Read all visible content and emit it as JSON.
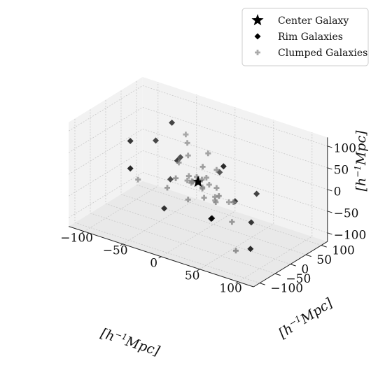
{
  "chart_data": {
    "type": "scatter",
    "projection": "3d",
    "title": "",
    "xlabel": "[h^{-1}Mpc]",
    "ylabel": "[h^{-1}Mpc]",
    "zlabel": "[h^{-1}Mpc]",
    "axis_label_parts": {
      "open": "[",
      "h": "h",
      "exp": "−1",
      "unit": "Mpc]"
    },
    "xlim": [
      -120,
      120
    ],
    "ylim": [
      -120,
      120
    ],
    "zlim": [
      -120,
      120
    ],
    "xticks": [
      -100,
      -50,
      0,
      50,
      100
    ],
    "yticks": [
      -100,
      -50,
      0,
      50,
      100
    ],
    "zticks": [
      -100,
      -50,
      0,
      50,
      100
    ],
    "x_tick_labels": [
      "−100",
      "−50",
      "0",
      "50",
      "100"
    ],
    "y_tick_labels": [
      "−100",
      "−50",
      "0",
      "50",
      "100"
    ],
    "z_tick_labels": [
      "−100",
      "−50",
      "0",
      "50",
      "100"
    ],
    "grid": true,
    "legend_position": "top-right",
    "series": [
      {
        "name": "Center Galaxy",
        "marker": "star",
        "color": "#000000",
        "points": [
          [
            0,
            0,
            0
          ]
        ]
      },
      {
        "name": "Rim Galaxies",
        "marker": "diamond",
        "color": "#000000",
        "points": [
          [
            -50,
            40,
            90
          ],
          [
            45,
            -30,
            75
          ],
          [
            -70,
            -45,
            10
          ],
          [
            -90,
            5,
            40
          ],
          [
            -35,
            20,
            20
          ],
          [
            35,
            -45,
            -45
          ],
          [
            -10,
            95,
            -25
          ],
          [
            50,
            -80,
            -20
          ],
          [
            -60,
            60,
            -55
          ],
          [
            60,
            40,
            -10
          ],
          [
            80,
            -30,
            -95
          ],
          [
            -40,
            -10,
            -80
          ],
          [
            -55,
            80,
            -10
          ],
          [
            -75,
            50,
            30
          ],
          [
            40,
            20,
            -30
          ],
          [
            65,
            10,
            -60
          ]
        ]
      },
      {
        "name": "Clumped Galaxies",
        "marker": "plus",
        "color": "#888888",
        "points": [
          [
            -15,
            5,
            50
          ],
          [
            10,
            -10,
            45
          ],
          [
            5,
            20,
            60
          ],
          [
            -30,
            40,
            55
          ],
          [
            20,
            10,
            35
          ],
          [
            -25,
            0,
            30
          ],
          [
            15,
            -25,
            25
          ],
          [
            30,
            -15,
            10
          ],
          [
            -10,
            -5,
            10
          ],
          [
            -5,
            8,
            5
          ],
          [
            8,
            -6,
            -8
          ],
          [
            4,
            4,
            -12
          ],
          [
            -8,
            -2,
            -6
          ],
          [
            12,
            6,
            -2
          ],
          [
            -3,
            -10,
            3
          ],
          [
            6,
            12,
            8
          ],
          [
            -12,
            10,
            -10
          ],
          [
            15,
            -18,
            -20
          ],
          [
            20,
            5,
            -25
          ],
          [
            -20,
            15,
            -15
          ],
          [
            25,
            -5,
            -30
          ],
          [
            -5,
            -20,
            -35
          ],
          [
            30,
            25,
            -40
          ],
          [
            -30,
            -25,
            -20
          ],
          [
            70,
            -60,
            20
          ],
          [
            60,
            -40,
            -40
          ],
          [
            -90,
            30,
            -60
          ],
          [
            85,
            -90,
            -70
          ],
          [
            55,
            -70,
            30
          ],
          [
            -40,
            60,
            60
          ],
          [
            10,
            30,
            -50
          ],
          [
            -15,
            -35,
            15
          ]
        ]
      }
    ]
  }
}
